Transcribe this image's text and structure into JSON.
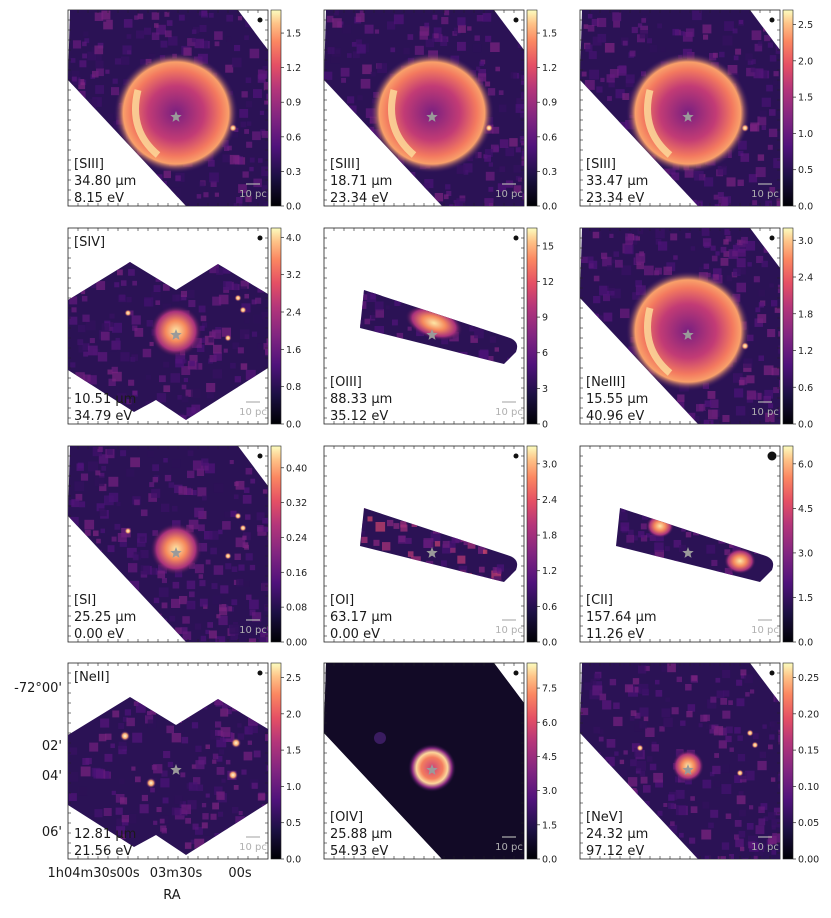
{
  "figure": {
    "ra_label": "RA",
    "dec_ticks": [
      "-72°00'",
      "02'",
      "04'",
      "06'"
    ],
    "ra_ticks": [
      "1h04m30s",
      "00s",
      "03m30s",
      "00s"
    ],
    "scalebar_label": "10 pc"
  },
  "chart_data": [
    {
      "type": "heatmap",
      "line": "[SIII]",
      "wavelength": "34.80 µm",
      "energy": "8.15 eV",
      "cbar_ticks": [
        "0.0",
        "0.3",
        "0.6",
        "0.9",
        "1.2",
        "1.5"
      ],
      "vmax": 1.7,
      "footprint": "rotated-square",
      "source": "shell"
    },
    {
      "type": "heatmap",
      "line": "[SIII]",
      "wavelength": "18.71 µm",
      "energy": "23.34 eV",
      "cbar_ticks": [
        "0.0",
        "0.3",
        "0.6",
        "0.9",
        "1.2",
        "1.5"
      ],
      "vmax": 1.7,
      "footprint": "rotated-square",
      "source": "shell"
    },
    {
      "type": "heatmap",
      "line": "[SIII]",
      "wavelength": "33.47 µm",
      "energy": "23.34 eV",
      "cbar_ticks": [
        "0.0",
        "0.5",
        "1.0",
        "1.5",
        "2.0",
        "2.5"
      ],
      "vmax": 2.7,
      "footprint": "rotated-square",
      "source": "shell"
    },
    {
      "type": "heatmap",
      "line": "[SIV]",
      "wavelength": "10.51 µm",
      "energy": "34.79 eV",
      "cbar_ticks": [
        "0.0",
        "0.8",
        "1.6",
        "2.4",
        "3.2",
        "4.0"
      ],
      "vmax": 4.2,
      "footprint": "double-square",
      "source": "compact"
    },
    {
      "type": "heatmap",
      "line": "[OIII]",
      "wavelength": "88.33 µm",
      "energy": "35.12 eV",
      "cbar_ticks": [
        "0",
        "3",
        "6",
        "9",
        "12",
        "15"
      ],
      "vmax": 16.5,
      "footprint": "strip",
      "source": "strip-east"
    },
    {
      "type": "heatmap",
      "line": "[NeIII]",
      "wavelength": "15.55 µm",
      "energy": "40.96 eV",
      "cbar_ticks": [
        "0.0",
        "0.6",
        "1.2",
        "1.8",
        "2.4",
        "3.0"
      ],
      "vmax": 3.2,
      "footprint": "rotated-square",
      "source": "shell"
    },
    {
      "type": "heatmap",
      "line": "[SI]",
      "wavelength": "25.25 µm",
      "energy": "0.00 eV",
      "cbar_ticks": [
        "0.00",
        "0.08",
        "0.16",
        "0.24",
        "0.32",
        "0.40"
      ],
      "vmax": 0.45,
      "footprint": "rotated-square",
      "source": "compact"
    },
    {
      "type": "heatmap",
      "line": "[OI]",
      "wavelength": "63.17 µm",
      "energy": "0.00 eV",
      "cbar_ticks": [
        "0.0",
        "0.6",
        "1.2",
        "1.8",
        "2.4",
        "3.0"
      ],
      "vmax": 3.3,
      "footprint": "strip",
      "source": "noise"
    },
    {
      "type": "heatmap",
      "line": "[CII]",
      "wavelength": "157.64 µm",
      "energy": "11.26 eV",
      "cbar_ticks": [
        "0.0",
        "1.5",
        "3.0",
        "4.5",
        "6.0"
      ],
      "vmax": 6.6,
      "footprint": "strip",
      "source": "strip-ends"
    },
    {
      "type": "heatmap",
      "line": "[NeII]",
      "wavelength": "12.81 µm",
      "energy": "21.56 eV",
      "cbar_ticks": [
        "0.0",
        "0.5",
        "1.0",
        "1.5",
        "2.0",
        "2.5"
      ],
      "vmax": 2.7,
      "footprint": "double-square",
      "source": "faint"
    },
    {
      "type": "heatmap",
      "line": "[OIV]",
      "wavelength": "25.88 µm",
      "energy": "54.93 eV",
      "cbar_ticks": [
        "0.0",
        "1.5",
        "3.0",
        "4.5",
        "6.0",
        "7.5"
      ],
      "vmax": 8.6,
      "footprint": "rotated-square",
      "source": "ring"
    },
    {
      "type": "heatmap",
      "line": "[NeV]",
      "wavelength": "24.32 µm",
      "energy": "97.12 eV",
      "cbar_ticks": [
        "0.00",
        "0.05",
        "0.10",
        "0.15",
        "0.20",
        "0.25"
      ],
      "vmax": 0.27,
      "footprint": "rotated-square",
      "source": "compact-faint"
    }
  ],
  "colors": {
    "magma_low": "#1c1030",
    "magma_mid": "#b7377a",
    "magma_high": "#fcfdbf",
    "star": "#9a9a9a",
    "scalebar": "#b0b0b0"
  }
}
